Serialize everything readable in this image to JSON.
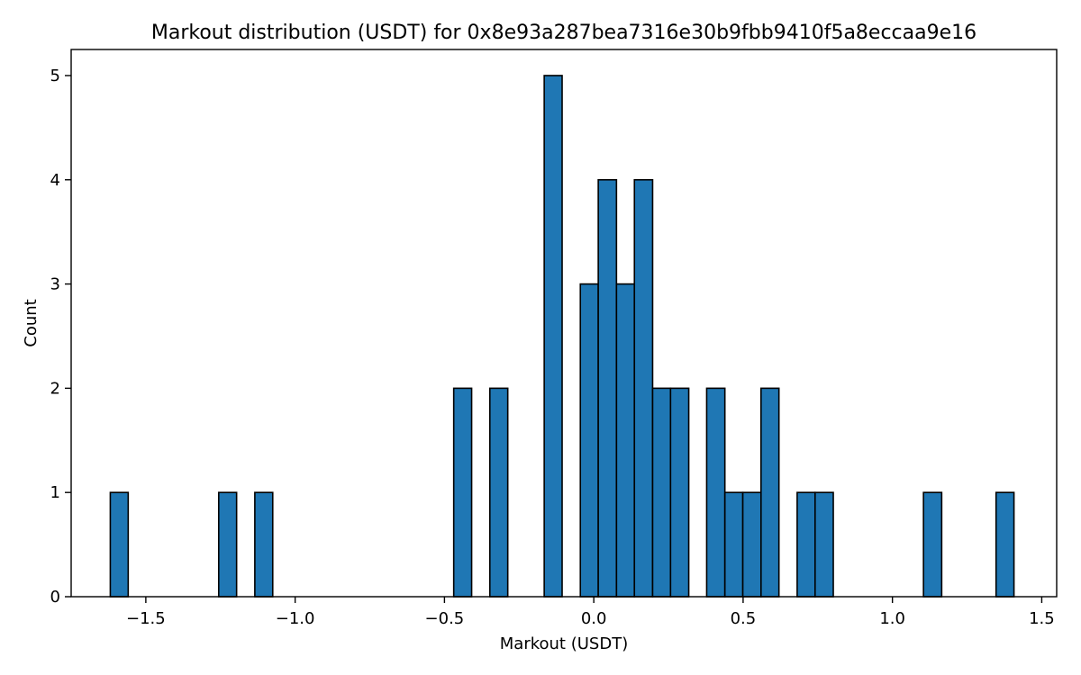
{
  "chart_data": {
    "type": "bar",
    "title": "Markout distribution (USDT) for 0x8e93a287bea7316e30b9fbb9410f5a8eccaa9e16",
    "xlabel": "Markout (USDT)",
    "ylabel": "Count",
    "xlim": [
      -1.75,
      1.55
    ],
    "ylim": [
      0,
      5.25
    ],
    "xticks": [
      -1.5,
      -1.0,
      -0.5,
      0.0,
      0.5,
      1.0,
      1.5
    ],
    "xtick_labels": [
      "−1.5",
      "−1.0",
      "−0.5",
      "0.0",
      "0.5",
      "1.0",
      "1.5"
    ],
    "yticks": [
      0,
      1,
      2,
      3,
      4,
      5
    ],
    "ytick_labels": [
      "0",
      "1",
      "2",
      "3",
      "4",
      "5"
    ],
    "bar_color": "#1f77b4",
    "grid": false,
    "bins": [
      {
        "x0": -1.619,
        "x1": -1.559,
        "count": 1
      },
      {
        "x0": -1.256,
        "x1": -1.196,
        "count": 1
      },
      {
        "x0": -1.135,
        "x1": -1.075,
        "count": 1
      },
      {
        "x0": -0.469,
        "x1": -0.409,
        "count": 2
      },
      {
        "x0": -0.348,
        "x1": -0.288,
        "count": 2
      },
      {
        "x0": -0.166,
        "x1": -0.106,
        "count": 5
      },
      {
        "x0": -0.045,
        "x1": 0.015,
        "count": 3
      },
      {
        "x0": 0.015,
        "x1": 0.076,
        "count": 4
      },
      {
        "x0": 0.076,
        "x1": 0.136,
        "count": 3
      },
      {
        "x0": 0.136,
        "x1": 0.197,
        "count": 4
      },
      {
        "x0": 0.197,
        "x1": 0.257,
        "count": 2
      },
      {
        "x0": 0.257,
        "x1": 0.318,
        "count": 2
      },
      {
        "x0": 0.378,
        "x1": 0.439,
        "count": 2
      },
      {
        "x0": 0.439,
        "x1": 0.499,
        "count": 1
      },
      {
        "x0": 0.499,
        "x1": 0.56,
        "count": 1
      },
      {
        "x0": 0.56,
        "x1": 0.62,
        "count": 2
      },
      {
        "x0": 0.681,
        "x1": 0.741,
        "count": 1
      },
      {
        "x0": 0.741,
        "x1": 0.802,
        "count": 1
      },
      {
        "x0": 1.104,
        "x1": 1.165,
        "count": 1
      },
      {
        "x0": 1.347,
        "x1": 1.407,
        "count": 1
      }
    ]
  }
}
